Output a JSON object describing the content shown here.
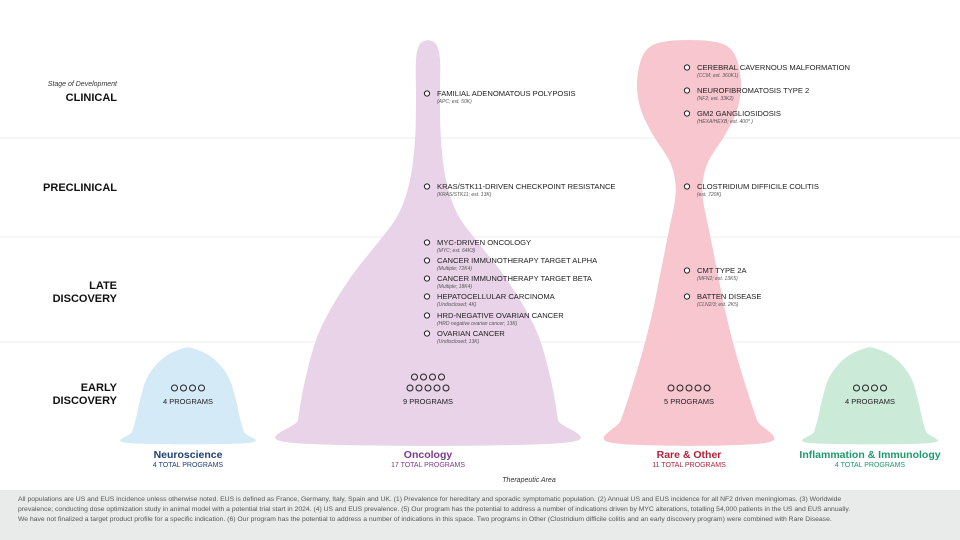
{
  "chart_data": {
    "type": "violin",
    "stage_caption": "Stage of Development",
    "xlabel": "Therapeutic Area",
    "stages": [
      {
        "key": "early",
        "line1": "EARLY",
        "line2": "DISCOVERY"
      },
      {
        "key": "late",
        "line1": "LATE",
        "line2": "DISCOVERY"
      },
      {
        "key": "preclinical",
        "line1": "PRECLINICAL",
        "line2": ""
      },
      {
        "key": "clinical",
        "line1": "CLINICAL",
        "line2": ""
      }
    ],
    "areas": [
      {
        "name": "Neuroscience",
        "total_label": "4 TOTAL PROGRAMS",
        "total": 4,
        "color": "#d4eaf7",
        "text_color": "#1f3f73",
        "stage_counts": {
          "early": 4,
          "late": 0,
          "preclinical": 0,
          "clinical": 0
        },
        "early_label": "4 PROGRAMS",
        "programs": []
      },
      {
        "name": "Oncology",
        "total_label": "17 TOTAL PROGRAMS",
        "total": 17,
        "color": "#e8d3e8",
        "text_color": "#7b3a8b",
        "stage_counts": {
          "early": 9,
          "late": 6,
          "preclinical": 1,
          "clinical": 1
        },
        "early_label": "9 PROGRAMS",
        "programs": [
          {
            "stage": "clinical",
            "name": "FAMILIAL ADENOMATOUS POLYPOSIS",
            "detail": "(APC; est. 50K)"
          },
          {
            "stage": "preclinical",
            "name": "KRAS/STK11-DRIVEN CHECKPOINT RESISTANCE",
            "detail": "(KRAS/STK11; est. 13K)"
          },
          {
            "stage": "late",
            "name": "MYC-DRIVEN ONCOLOGY",
            "detail": "(MYC; est. 64K3)"
          },
          {
            "stage": "late",
            "name": "CANCER IMMUNOTHERAPY TARGET ALPHA",
            "detail": "(Multiple; 72K4)"
          },
          {
            "stage": "late",
            "name": "CANCER IMMUNOTHERAPY TARGET BETA",
            "detail": "(Multiple; 18K4)"
          },
          {
            "stage": "late",
            "name": "HEPATOCELLULAR CARCINOMA",
            "detail": "(Undisclosed; 4K)"
          },
          {
            "stage": "late",
            "name": "HRD-NEGATIVE OVARIAN CANCER",
            "detail": "(HRD negative ovarian cancer; 13K)"
          },
          {
            "stage": "late",
            "name": "OVARIAN CANCER",
            "detail": "(Undisclosed; 13K)"
          }
        ]
      },
      {
        "name": "Rare & Other",
        "total_label": "11 TOTAL PROGRAMS",
        "total": 11,
        "color": "#f7c6cf",
        "text_color": "#b2233a",
        "stage_counts": {
          "early": 5,
          "late": 2,
          "preclinical": 1,
          "clinical": 3
        },
        "early_label": "5 PROGRAMS",
        "programs": [
          {
            "stage": "clinical",
            "name": "CEREBRAL CAVERNOUS MALFORMATION",
            "detail": "(CCM; est. 360K1)"
          },
          {
            "stage": "clinical",
            "name": "NEUROFIBROMATOSIS TYPE 2",
            "detail": "(NF2; est. 33K2)"
          },
          {
            "stage": "clinical",
            "name": "GM2 GANGLIOSIDOSIS",
            "detail": "(HEXA/HEXB; est. 400* )"
          },
          {
            "stage": "preclinical",
            "name": "CLOSTRIDIUM DIFFICILE  COLITIS",
            "detail": "(est. 720K)"
          },
          {
            "stage": "late",
            "name": "CMT TYPE 2A",
            "detail": "(MFN2; est. 13K5)"
          },
          {
            "stage": "late",
            "name": "BATTEN DISEASE",
            "detail": "(CLN2/3; est. 2K5)"
          }
        ]
      },
      {
        "name": "Inflammation & Immunology",
        "total_label": "4 TOTAL PROGRAMS",
        "total": 4,
        "color": "#cbead8",
        "text_color": "#1e9a6a",
        "stage_counts": {
          "early": 4,
          "late": 0,
          "preclinical": 0,
          "clinical": 0
        },
        "early_label": "4 PROGRAMS",
        "programs": []
      }
    ]
  },
  "footer": {
    "line1": "All populations are US and EUS incidence  unless otherwise noted.  EUS is defined as France, Germany, Italy, Spain and UK.  (1) Prevalence for hereditary and sporadic  symptomatic population.  (2) Annual US and EUS incidence  for all NF2 driven meningiomas.  (3) Worldwide",
    "line2": "prevalence; conducting  dose  optimization study in animal model  with a potential trial start in 2024.  (4) US and EUS prevalence.  (5) Our program has the potential to address a number of indications driven by MYC alterations, totalling 54,000 patients in the US and EUS annually.",
    "line3": "We have not finalized a target product profile for a specific indication.  (6) Our program has the potential to address a number of indications in this space.  Two programs in Other (Clostridium difficile colitis and an early discovery program) were combined  with Rare Disease."
  }
}
